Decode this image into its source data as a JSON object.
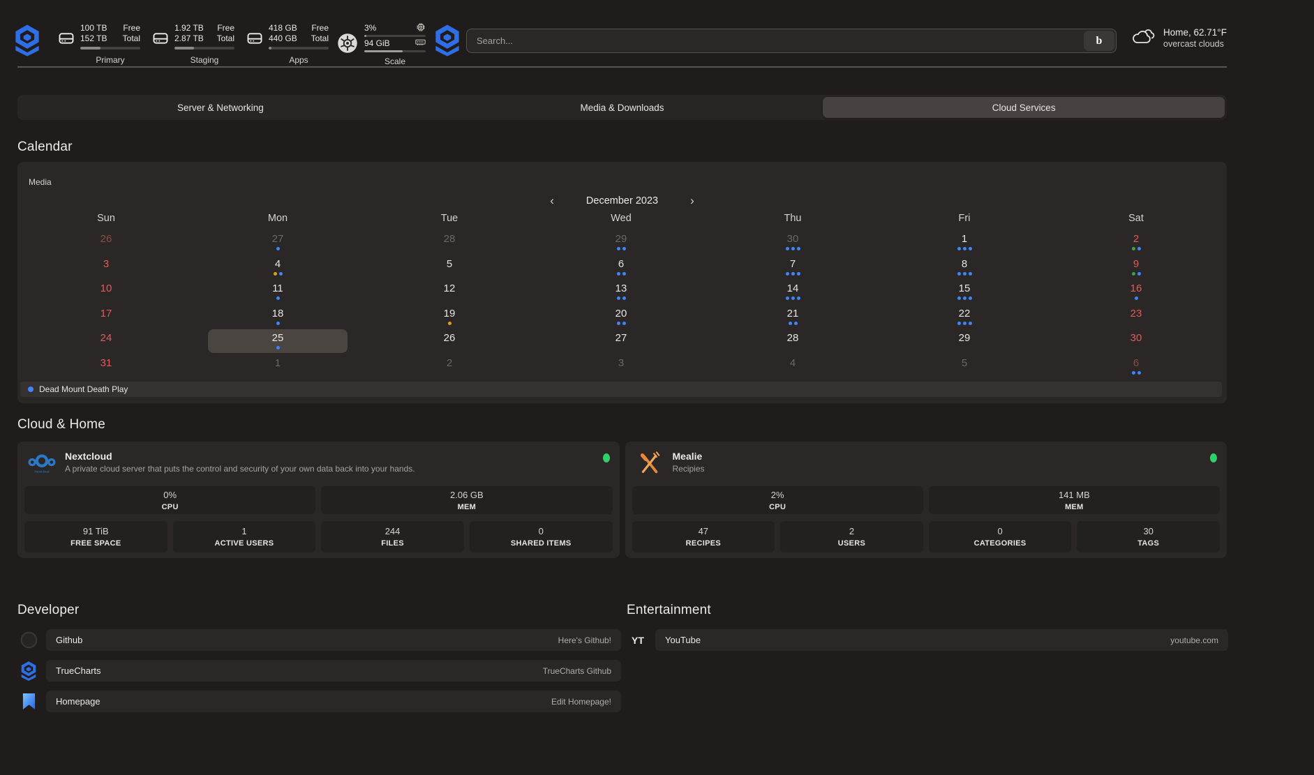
{
  "header": {
    "storage_widgets": [
      {
        "icon": "hard-disk-icon",
        "label": "Primary",
        "free_value": "100 TB",
        "free_label": "Free",
        "total_value": "152 TB",
        "total_label": "Total",
        "used_percent": 34
      },
      {
        "icon": "hard-disk-icon",
        "label": "Staging",
        "free_value": "1.92 TB",
        "free_label": "Free",
        "total_value": "2.87 TB",
        "total_label": "Total",
        "used_percent": 33
      },
      {
        "icon": "hard-disk-icon",
        "label": "Apps",
        "free_value": "418 GB",
        "free_label": "Free",
        "total_value": "440 GB",
        "total_label": "Total",
        "used_percent": 5
      }
    ],
    "scale_widget": {
      "icon": "kubernetes-icon",
      "label": "Scale",
      "cpu_value": "3%",
      "cpu_percent": 3,
      "mem_value": "94 GiB",
      "mem_percent": 62
    },
    "search": {
      "placeholder": "Search...",
      "button_glyph": "b"
    },
    "weather": {
      "icon": "cloud-icon",
      "title": "Home, 62.71°F",
      "condition": "overcast clouds"
    }
  },
  "tabs": [
    {
      "label": "Server & Networking",
      "active": false
    },
    {
      "label": "Media & Downloads",
      "active": false
    },
    {
      "label": "Cloud Services",
      "active": true
    }
  ],
  "calendar": {
    "section_title": "Calendar",
    "widget_label": "Media",
    "prev": "‹",
    "month": "December 2023",
    "next": "›",
    "day_headers": [
      "Sun",
      "Mon",
      "Tue",
      "Wed",
      "Thu",
      "Fri",
      "Sat"
    ],
    "dot_colors": {
      "blue": "#4285f4",
      "yellow": "#d9a21b",
      "green": "#43a047"
    },
    "weeks": [
      [
        {
          "day": "26",
          "weekend": true,
          "outside": true,
          "selected": false,
          "dots": []
        },
        {
          "day": "27",
          "weekend": false,
          "outside": true,
          "selected": false,
          "dots": [
            "blue"
          ]
        },
        {
          "day": "28",
          "weekend": false,
          "outside": true,
          "selected": false,
          "dots": []
        },
        {
          "day": "29",
          "weekend": false,
          "outside": true,
          "selected": false,
          "dots": [
            "blue",
            "blue"
          ]
        },
        {
          "day": "30",
          "weekend": false,
          "outside": true,
          "selected": false,
          "dots": [
            "blue",
            "blue",
            "blue"
          ]
        },
        {
          "day": "1",
          "weekend": false,
          "outside": false,
          "selected": false,
          "dots": [
            "blue",
            "blue",
            "blue"
          ]
        },
        {
          "day": "2",
          "weekend": true,
          "outside": false,
          "selected": false,
          "dots": [
            "green",
            "blue"
          ]
        }
      ],
      [
        {
          "day": "3",
          "weekend": true,
          "outside": false,
          "selected": false,
          "dots": []
        },
        {
          "day": "4",
          "weekend": false,
          "outside": false,
          "selected": false,
          "dots": [
            "yellow",
            "blue"
          ]
        },
        {
          "day": "5",
          "weekend": false,
          "outside": false,
          "selected": false,
          "dots": []
        },
        {
          "day": "6",
          "weekend": false,
          "outside": false,
          "selected": false,
          "dots": [
            "blue",
            "blue"
          ]
        },
        {
          "day": "7",
          "weekend": false,
          "outside": false,
          "selected": false,
          "dots": [
            "blue",
            "blue",
            "blue"
          ]
        },
        {
          "day": "8",
          "weekend": false,
          "outside": false,
          "selected": false,
          "dots": [
            "blue",
            "blue",
            "blue"
          ]
        },
        {
          "day": "9",
          "weekend": true,
          "outside": false,
          "selected": false,
          "dots": [
            "green",
            "blue"
          ]
        }
      ],
      [
        {
          "day": "10",
          "weekend": true,
          "outside": false,
          "selected": false,
          "dots": []
        },
        {
          "day": "11",
          "weekend": false,
          "outside": false,
          "selected": false,
          "dots": [
            "blue"
          ]
        },
        {
          "day": "12",
          "weekend": false,
          "outside": false,
          "selected": false,
          "dots": []
        },
        {
          "day": "13",
          "weekend": false,
          "outside": false,
          "selected": false,
          "dots": [
            "blue",
            "blue"
          ]
        },
        {
          "day": "14",
          "weekend": false,
          "outside": false,
          "selected": false,
          "dots": [
            "blue",
            "blue",
            "blue"
          ]
        },
        {
          "day": "15",
          "weekend": false,
          "outside": false,
          "selected": false,
          "dots": [
            "blue",
            "blue",
            "blue"
          ]
        },
        {
          "day": "16",
          "weekend": true,
          "outside": false,
          "selected": false,
          "dots": [
            "blue"
          ]
        }
      ],
      [
        {
          "day": "17",
          "weekend": true,
          "outside": false,
          "selected": false,
          "dots": []
        },
        {
          "day": "18",
          "weekend": false,
          "outside": false,
          "selected": false,
          "dots": [
            "blue"
          ]
        },
        {
          "day": "19",
          "weekend": false,
          "outside": false,
          "selected": false,
          "dots": [
            "yellow"
          ]
        },
        {
          "day": "20",
          "weekend": false,
          "outside": false,
          "selected": false,
          "dots": [
            "blue",
            "blue"
          ]
        },
        {
          "day": "21",
          "weekend": false,
          "outside": false,
          "selected": false,
          "dots": [
            "blue",
            "blue"
          ]
        },
        {
          "day": "22",
          "weekend": false,
          "outside": false,
          "selected": false,
          "dots": [
            "blue",
            "blue",
            "blue"
          ]
        },
        {
          "day": "23",
          "weekend": true,
          "outside": false,
          "selected": false,
          "dots": []
        }
      ],
      [
        {
          "day": "24",
          "weekend": true,
          "outside": false,
          "selected": false,
          "dots": []
        },
        {
          "day": "25",
          "weekend": false,
          "outside": false,
          "selected": true,
          "dots": [
            "blue"
          ]
        },
        {
          "day": "26",
          "weekend": false,
          "outside": false,
          "selected": false,
          "dots": []
        },
        {
          "day": "27",
          "weekend": false,
          "outside": false,
          "selected": false,
          "dots": []
        },
        {
          "day": "28",
          "weekend": false,
          "outside": false,
          "selected": false,
          "dots": []
        },
        {
          "day": "29",
          "weekend": false,
          "outside": false,
          "selected": false,
          "dots": []
        },
        {
          "day": "30",
          "weekend": true,
          "outside": false,
          "selected": false,
          "dots": []
        }
      ],
      [
        {
          "day": "31",
          "weekend": true,
          "outside": false,
          "selected": false,
          "dots": []
        },
        {
          "day": "1",
          "weekend": false,
          "outside": true,
          "selected": false,
          "dots": []
        },
        {
          "day": "2",
          "weekend": false,
          "outside": true,
          "selected": false,
          "dots": []
        },
        {
          "day": "3",
          "weekend": false,
          "outside": true,
          "selected": false,
          "dots": []
        },
        {
          "day": "4",
          "weekend": false,
          "outside": true,
          "selected": false,
          "dots": []
        },
        {
          "day": "5",
          "weekend": false,
          "outside": true,
          "selected": false,
          "dots": []
        },
        {
          "day": "6",
          "weekend": true,
          "outside": true,
          "selected": false,
          "dots": [
            "blue",
            "blue"
          ]
        }
      ]
    ],
    "legend": {
      "dot_color": "#4285f4",
      "label": "Dead Mount Death Play"
    }
  },
  "cloud_home": {
    "section_title": "Cloud & Home",
    "cards": [
      {
        "title": "Nextcloud",
        "icon": "nextcloud-icon",
        "subtitle": "A private cloud server that puts the control and security of your own data back into your hands.",
        "status_color": "#2fd16b",
        "wide_stats": [
          {
            "value": "0%",
            "label": "CPU"
          },
          {
            "value": "2.06 GB",
            "label": "MEM"
          }
        ],
        "stats": [
          {
            "value": "91 TiB",
            "label": "FREE SPACE"
          },
          {
            "value": "1",
            "label": "ACTIVE USERS"
          },
          {
            "value": "244",
            "label": "FILES"
          },
          {
            "value": "0",
            "label": "SHARED ITEMS"
          }
        ]
      },
      {
        "title": "Mealie",
        "icon": "mealie-icon",
        "subtitle": "Recipies",
        "status_color": "#2fd16b",
        "wide_stats": [
          {
            "value": "2%",
            "label": "CPU"
          },
          {
            "value": "141 MB",
            "label": "MEM"
          }
        ],
        "stats": [
          {
            "value": "47",
            "label": "RECIPES"
          },
          {
            "value": "2",
            "label": "USERS"
          },
          {
            "value": "0",
            "label": "CATEGORIES"
          },
          {
            "value": "30",
            "label": "TAGS"
          }
        ]
      }
    ]
  },
  "developer": {
    "section_title": "Developer",
    "links": [
      {
        "icon": "github-icon",
        "label": "Github",
        "description": "Here's Github!"
      },
      {
        "icon": "truecharts-icon",
        "label": "TrueCharts",
        "description": "TrueCharts Github"
      },
      {
        "icon": "homepage-icon",
        "label": "Homepage",
        "description": "Edit Homepage!"
      }
    ]
  },
  "entertainment": {
    "section_title": "Entertainment",
    "links": [
      {
        "icon": "youtube-icon",
        "icon_text": "YT",
        "label": "YouTube",
        "description": "youtube.com"
      }
    ]
  }
}
